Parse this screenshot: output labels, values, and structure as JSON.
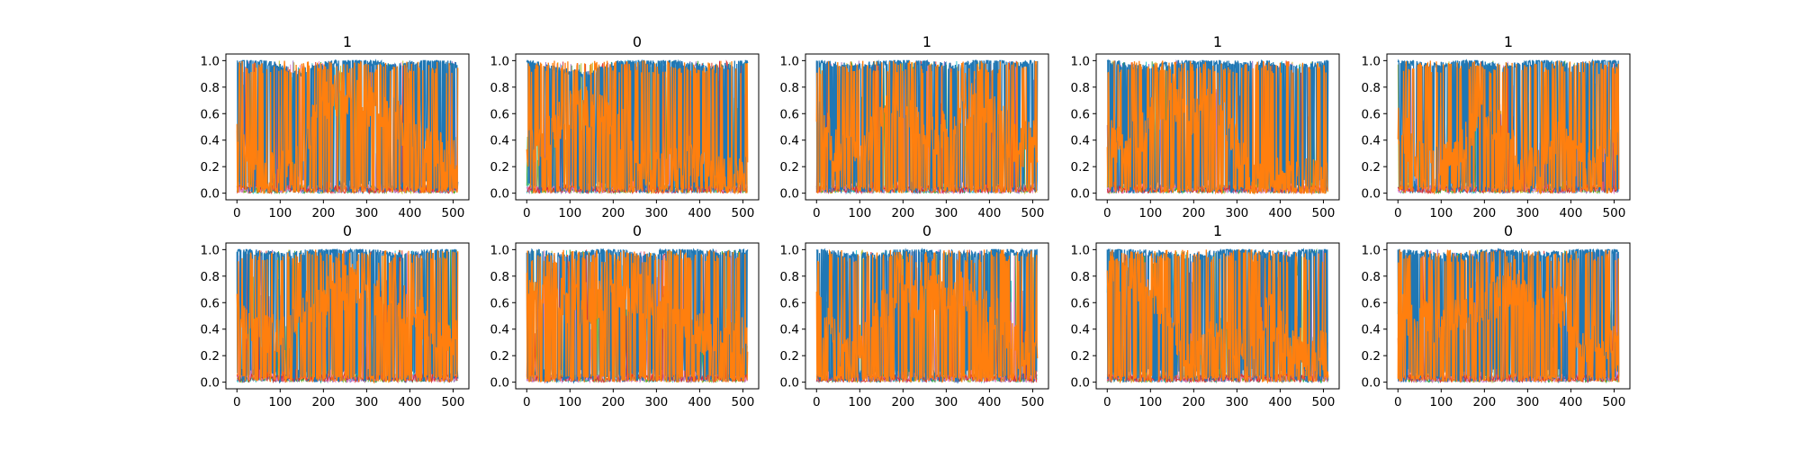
{
  "figure": {
    "background": "#ffffff"
  },
  "chart_data": [
    {
      "type": "line",
      "title": "1",
      "x_range": [
        0,
        511
      ],
      "ylim": [
        0.0,
        1.0
      ],
      "xticks": [
        "0",
        "100",
        "200",
        "300",
        "400",
        "500"
      ],
      "yticks": [
        "0.0",
        "0.2",
        "0.4",
        "0.6",
        "0.8",
        "1.0"
      ],
      "series": [
        {
          "color": "#1f77b4",
          "values": [
            1,
            1,
            0.97,
            0.9,
            0.96,
            1,
            1,
            0.98,
            0.95,
            1,
            1,
            0.97
          ]
        },
        {
          "color": "#ff7f0e",
          "values": [
            0.5,
            0.15,
            0.15,
            0.2,
            0.6,
            0.75,
            0.7,
            0.65,
            0.55,
            0.4,
            0.3,
            0.25
          ]
        }
      ]
    },
    {
      "type": "line",
      "title": "0",
      "x_range": [
        0,
        511
      ],
      "ylim": [
        0.0,
        1.0
      ],
      "xticks": [
        "0",
        "100",
        "200",
        "300",
        "400",
        "500"
      ],
      "yticks": [
        "0.0",
        "0.2",
        "0.4",
        "0.6",
        "0.8",
        "1.0"
      ],
      "series": [
        {
          "color": "#1f77b4",
          "values": [
            1,
            0.95,
            0.92,
            0.9,
            0.95,
            1,
            1,
            1,
            0.97,
            0.94,
            0.96,
            1
          ]
        },
        {
          "color": "#ff7f0e",
          "values": [
            0.35,
            0.4,
            0.6,
            0.65,
            0.6,
            0.45,
            0.15,
            0.15,
            0.3,
            0.15,
            0.1,
            0.15
          ]
        }
      ]
    },
    {
      "type": "line",
      "title": "1",
      "x_range": [
        0,
        511
      ],
      "ylim": [
        0.0,
        1.0
      ],
      "xticks": [
        "0",
        "100",
        "200",
        "300",
        "400",
        "500"
      ],
      "yticks": [
        "0.0",
        "0.2",
        "0.4",
        "0.6",
        "0.8",
        "1.0"
      ],
      "series": [
        {
          "color": "#1f77b4",
          "values": [
            1,
            0.97,
            0.95,
            0.98,
            1,
            1,
            0.97,
            0.95,
            1,
            1,
            0.96,
            1
          ]
        },
        {
          "color": "#ff7f0e",
          "values": [
            0.6,
            0.3,
            0.35,
            0.45,
            0.75,
            0.5,
            0.4,
            0.6,
            0.7,
            0.55,
            0.35,
            0.4
          ]
        }
      ]
    },
    {
      "type": "line",
      "title": "1",
      "x_range": [
        0,
        511
      ],
      "ylim": [
        0.0,
        1.0
      ],
      "xticks": [
        "0",
        "100",
        "200",
        "300",
        "400",
        "500"
      ],
      "yticks": [
        "0.0",
        "0.2",
        "0.4",
        "0.6",
        "0.8",
        "1.0"
      ],
      "series": [
        {
          "color": "#1f77b4",
          "values": [
            1,
            0.96,
            0.95,
            0.97,
            1,
            1,
            0.98,
            0.97,
            1,
            0.95,
            0.96,
            1
          ]
        },
        {
          "color": "#ff7f0e",
          "values": [
            0.45,
            0.3,
            0.55,
            0.7,
            0.6,
            0.65,
            0.5,
            0.15,
            0.1,
            0.1,
            0.1,
            0.1
          ]
        }
      ]
    },
    {
      "type": "line",
      "title": "1",
      "x_range": [
        0,
        511
      ],
      "ylim": [
        0.0,
        1.0
      ],
      "xticks": [
        "0",
        "100",
        "200",
        "300",
        "400",
        "500"
      ],
      "yticks": [
        "0.0",
        "0.2",
        "0.4",
        "0.6",
        "0.8",
        "1.0"
      ],
      "series": [
        {
          "color": "#1f77b4",
          "values": [
            1,
            0.97,
            0.96,
            1,
            1,
            0.95,
            0.97,
            1,
            0.98,
            0.96,
            1,
            1
          ]
        },
        {
          "color": "#ff7f0e",
          "values": [
            0.55,
            0.25,
            0.2,
            0.25,
            0.6,
            0.5,
            0.25,
            0.2,
            0.5,
            0.25,
            0.3,
            0.35
          ]
        }
      ]
    },
    {
      "type": "line",
      "title": "0",
      "x_range": [
        0,
        511
      ],
      "ylim": [
        0.0,
        1.0
      ],
      "xticks": [
        "0",
        "100",
        "200",
        "300",
        "400",
        "500"
      ],
      "yticks": [
        "0.0",
        "0.2",
        "0.4",
        "0.6",
        "0.8",
        "1.0"
      ],
      "series": [
        {
          "color": "#1f77b4",
          "values": [
            1,
            0.98,
            0.96,
            0.97,
            1,
            1,
            1,
            0.98,
            0.96,
            0.97,
            1,
            1
          ]
        },
        {
          "color": "#ff7f0e",
          "values": [
            0.5,
            0.35,
            0.35,
            0.4,
            0.65,
            0.7,
            0.75,
            0.65,
            0.6,
            0.5,
            0.4,
            0.35
          ]
        }
      ]
    },
    {
      "type": "line",
      "title": "0",
      "x_range": [
        0,
        511
      ],
      "ylim": [
        0.0,
        1.0
      ],
      "xticks": [
        "0",
        "100",
        "200",
        "300",
        "400",
        "500"
      ],
      "yticks": [
        "0.0",
        "0.2",
        "0.4",
        "0.6",
        "0.8",
        "1.0"
      ],
      "series": [
        {
          "color": "#1f77b4",
          "values": [
            1,
            0.97,
            0.96,
            0.98,
            1,
            0.97,
            0.95,
            1,
            1,
            0.98,
            0.97,
            1
          ]
        },
        {
          "color": "#ff7f0e",
          "values": [
            0.7,
            0.65,
            0.6,
            0.6,
            0.65,
            0.7,
            0.65,
            0.55,
            0.35,
            0.35,
            0.4,
            0.35
          ]
        }
      ]
    },
    {
      "type": "line",
      "title": "0",
      "x_range": [
        0,
        511
      ],
      "ylim": [
        0.0,
        1.0
      ],
      "xticks": [
        "0",
        "100",
        "200",
        "300",
        "400",
        "500"
      ],
      "yticks": [
        "0.0",
        "0.2",
        "0.4",
        "0.6",
        "0.8",
        "1.0"
      ],
      "series": [
        {
          "color": "#1f77b4",
          "values": [
            1,
            0.97,
            0.96,
            0.95,
            1,
            1,
            0.98,
            0.97,
            0.96,
            1,
            0.98,
            1
          ]
        },
        {
          "color": "#ff7f0e",
          "values": [
            0.6,
            0.3,
            0.25,
            0.5,
            0.7,
            0.6,
            0.65,
            0.7,
            0.55,
            0.5,
            0.25,
            0.2
          ]
        }
      ]
    },
    {
      "type": "line",
      "title": "1",
      "x_range": [
        0,
        511
      ],
      "ylim": [
        0.0,
        1.0
      ],
      "xticks": [
        "0",
        "100",
        "200",
        "300",
        "400",
        "500"
      ],
      "yticks": [
        "0.0",
        "0.2",
        "0.4",
        "0.6",
        "0.8",
        "1.0"
      ],
      "series": [
        {
          "color": "#1f77b4",
          "values": [
            1,
            1,
            0.98,
            0.96,
            0.95,
            0.96,
            1,
            1,
            0.97,
            0.96,
            1,
            1
          ]
        },
        {
          "color": "#ff7f0e",
          "values": [
            0.8,
            0.85,
            0.7,
            0.45,
            0.25,
            0.3,
            0.3,
            0.25,
            0.55,
            0.3,
            0.2,
            0.25
          ]
        }
      ]
    },
    {
      "type": "line",
      "title": "0",
      "x_range": [
        0,
        511
      ],
      "ylim": [
        0.0,
        1.0
      ],
      "xticks": [
        "0",
        "100",
        "200",
        "300",
        "400",
        "500"
      ],
      "yticks": [
        "0.0",
        "0.2",
        "0.4",
        "0.6",
        "0.8",
        "1.0"
      ],
      "series": [
        {
          "color": "#1f77b4",
          "values": [
            1,
            0.98,
            0.96,
            0.95,
            0.97,
            1,
            0.98,
            0.96,
            0.97,
            1,
            1,
            1
          ]
        },
        {
          "color": "#ff7f0e",
          "values": [
            0.55,
            0.5,
            0.45,
            0.55,
            0.6,
            0.65,
            0.7,
            0.65,
            0.6,
            0.3,
            0.25,
            0.25
          ]
        }
      ]
    }
  ]
}
